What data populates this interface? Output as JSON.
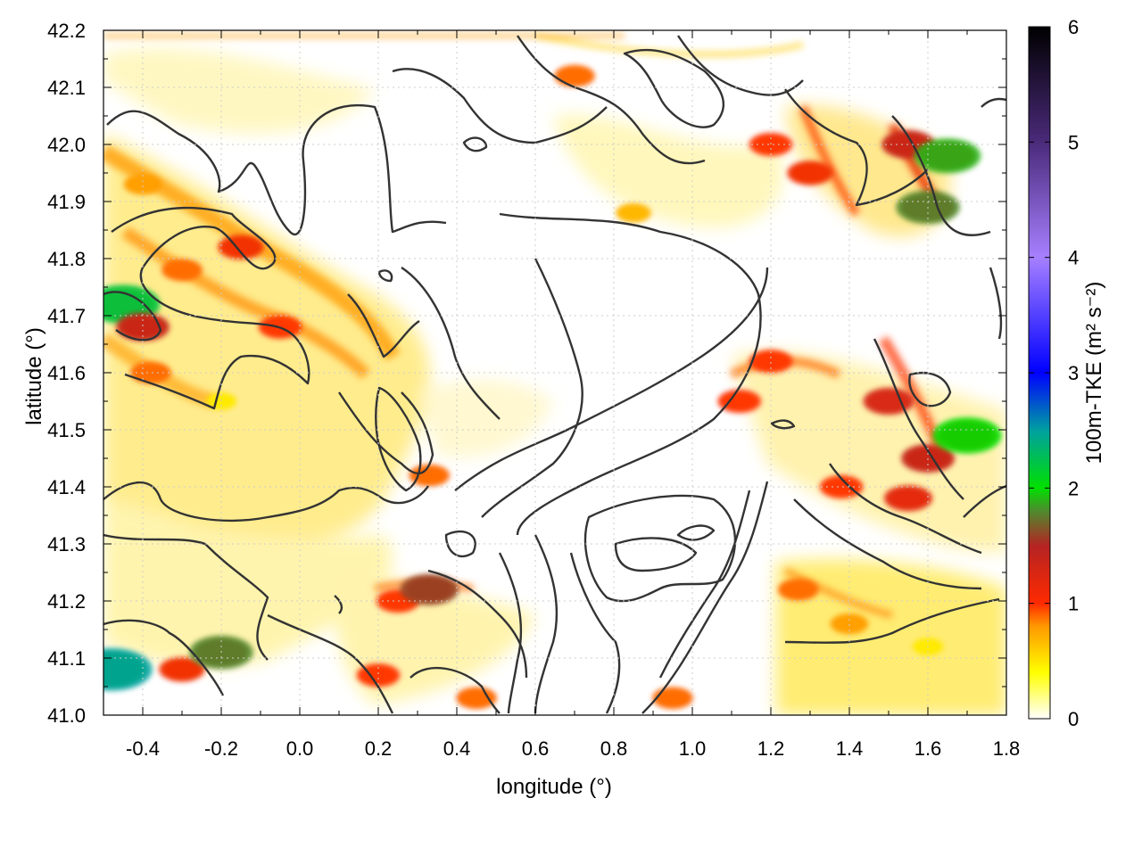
{
  "chart_data": {
    "type": "heatmap",
    "title": "",
    "xlabel": "longitude (°)",
    "ylabel": "latitude (°)",
    "xlim": [
      -0.5,
      1.8
    ],
    "ylim": [
      41.0,
      42.2
    ],
    "x_ticks": [
      -0.4,
      -0.2,
      0.0,
      0.2,
      0.4,
      0.6,
      0.8,
      1.0,
      1.2,
      1.4,
      1.6,
      1.8
    ],
    "x_tick_labels": [
      "-0.4",
      "-0.2",
      "0.0",
      "0.2",
      "0.4",
      "0.6",
      "0.8",
      "1.0",
      "1.2",
      "1.4",
      "1.6",
      "1.8"
    ],
    "y_ticks": [
      41.0,
      41.1,
      41.2,
      41.3,
      41.4,
      41.5,
      41.6,
      41.7,
      41.8,
      41.9,
      42.0,
      42.1,
      42.2
    ],
    "y_tick_labels": [
      "41.0",
      "41.1",
      "41.2",
      "41.3",
      "41.4",
      "41.5",
      "41.6",
      "41.7",
      "41.8",
      "41.9",
      "42.0",
      "42.1",
      "42.2"
    ],
    "grid": true,
    "colorbar": {
      "label": "100m-TKE (m² s⁻²)",
      "range": [
        0,
        6
      ],
      "ticks": [
        0,
        1,
        2,
        3,
        4,
        5,
        6
      ],
      "tick_labels": [
        "0",
        "1",
        "2",
        "3",
        "4",
        "5",
        "6"
      ],
      "colors": [
        {
          "value": 0.0,
          "color": "#ffffff"
        },
        {
          "value": 0.4,
          "color": "#ffff00"
        },
        {
          "value": 0.8,
          "color": "#ff9900"
        },
        {
          "value": 1.0,
          "color": "#ff2a00"
        },
        {
          "value": 1.5,
          "color": "#b52323"
        },
        {
          "value": 1.8,
          "color": "#4f8a2e"
        },
        {
          "value": 2.0,
          "color": "#00e000"
        },
        {
          "value": 2.5,
          "color": "#00a0a0"
        },
        {
          "value": 3.0,
          "color": "#0000ff"
        },
        {
          "value": 4.0,
          "color": "#a680ff"
        },
        {
          "value": 5.0,
          "color": "#4a2a7a"
        },
        {
          "value": 6.0,
          "color": "#000000"
        }
      ]
    },
    "contour_color": "#333333",
    "hotspots": [
      {
        "lon": -0.45,
        "lat": 41.72,
        "tke": 2.2
      },
      {
        "lon": -0.4,
        "lat": 41.68,
        "tke": 1.4
      },
      {
        "lon": -0.38,
        "lat": 41.6,
        "tke": 0.9
      },
      {
        "lon": -0.3,
        "lat": 41.78,
        "tke": 0.9
      },
      {
        "lon": -0.15,
        "lat": 41.82,
        "tke": 1.1
      },
      {
        "lon": -0.05,
        "lat": 41.68,
        "tke": 1.0
      },
      {
        "lon": -0.4,
        "lat": 41.93,
        "tke": 0.8
      },
      {
        "lon": -0.2,
        "lat": 41.55,
        "tke": 0.5
      },
      {
        "lon": -0.3,
        "lat": 41.08,
        "tke": 1.1
      },
      {
        "lon": -0.2,
        "lat": 41.11,
        "tke": 1.8
      },
      {
        "lon": -0.48,
        "lat": 41.08,
        "tke": 2.5
      },
      {
        "lon": 0.25,
        "lat": 41.2,
        "tke": 1.0
      },
      {
        "lon": 0.33,
        "lat": 41.22,
        "tke": 1.6
      },
      {
        "lon": 0.2,
        "lat": 41.07,
        "tke": 1.0
      },
      {
        "lon": 0.45,
        "lat": 41.03,
        "tke": 0.9
      },
      {
        "lon": 0.33,
        "lat": 41.42,
        "tke": 0.9
      },
      {
        "lon": 0.7,
        "lat": 42.12,
        "tke": 0.9
      },
      {
        "lon": 0.85,
        "lat": 41.88,
        "tke": 0.7
      },
      {
        "lon": 1.2,
        "lat": 42.0,
        "tke": 1.0
      },
      {
        "lon": 1.3,
        "lat": 41.95,
        "tke": 1.1
      },
      {
        "lon": 1.55,
        "lat": 42.0,
        "tke": 1.4
      },
      {
        "lon": 1.65,
        "lat": 41.98,
        "tke": 1.9
      },
      {
        "lon": 1.6,
        "lat": 41.89,
        "tke": 1.8
      },
      {
        "lon": 1.12,
        "lat": 41.55,
        "tke": 1.0
      },
      {
        "lon": 1.2,
        "lat": 41.62,
        "tke": 1.0
      },
      {
        "lon": 1.5,
        "lat": 41.55,
        "tke": 1.3
      },
      {
        "lon": 1.6,
        "lat": 41.45,
        "tke": 1.4
      },
      {
        "lon": 1.7,
        "lat": 41.49,
        "tke": 2.0
      },
      {
        "lon": 1.55,
        "lat": 41.38,
        "tke": 1.2
      },
      {
        "lon": 1.38,
        "lat": 41.4,
        "tke": 1.0
      },
      {
        "lon": 1.27,
        "lat": 41.22,
        "tke": 0.9
      },
      {
        "lon": 1.4,
        "lat": 41.16,
        "tke": 0.8
      },
      {
        "lon": 1.6,
        "lat": 41.12,
        "tke": 0.5
      },
      {
        "lon": 0.95,
        "lat": 41.03,
        "tke": 0.9
      }
    ]
  }
}
